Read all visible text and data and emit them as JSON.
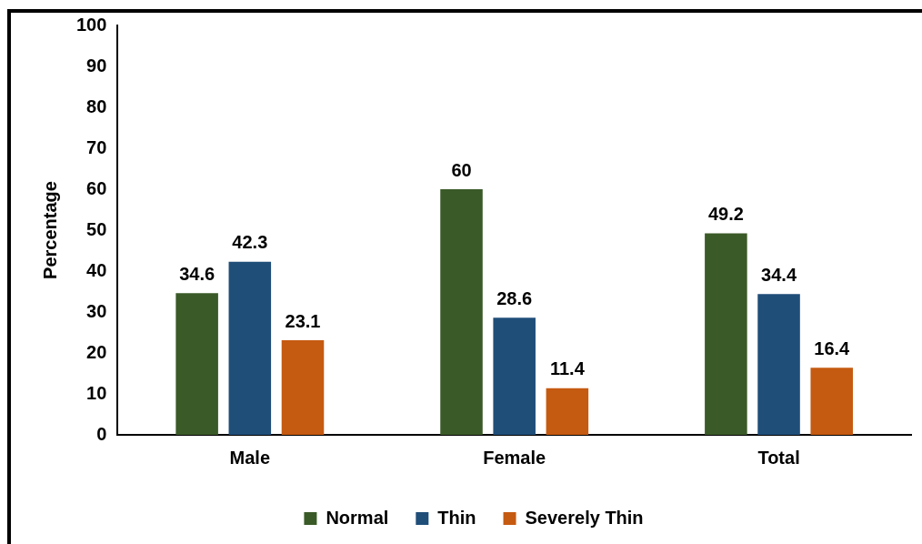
{
  "chart_data": {
    "type": "bar",
    "ylabel": "Percentage",
    "categories": [
      "Male",
      "Female",
      "Total"
    ],
    "series": [
      {
        "name": "Normal",
        "color": "#3a5a27",
        "values": [
          34.6,
          60,
          49.2
        ]
      },
      {
        "name": "Thin",
        "color": "#1f4e79",
        "values": [
          42.3,
          28.6,
          34.4
        ]
      },
      {
        "name": "Severely Thin",
        "color": "#c55a11",
        "values": [
          23.1,
          11.4,
          16.4
        ]
      }
    ],
    "ylim": [
      0,
      100
    ],
    "yticks": [
      0,
      10,
      20,
      30,
      40,
      50,
      60,
      70,
      80,
      90,
      100
    ],
    "grid": false,
    "legend": "bottom",
    "data_labels": true
  }
}
